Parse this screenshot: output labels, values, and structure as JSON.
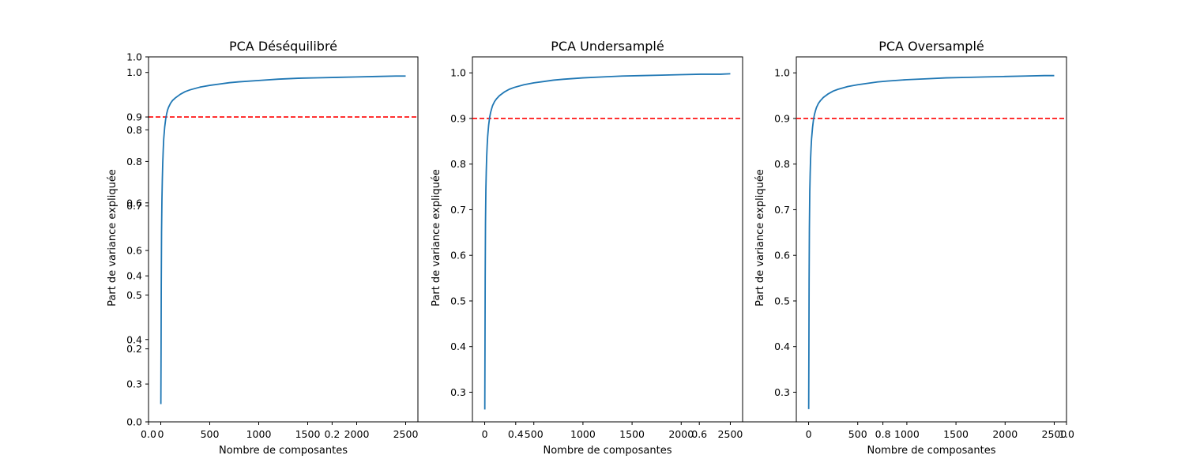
{
  "figure": {
    "background": "#ffffff",
    "line_color": "#1f77b4",
    "threshold_color": "#ff0000"
  },
  "overlay_axes": {
    "xticks": [
      "0.0",
      "0.2",
      "0.4",
      "0.6",
      "0.8",
      "1.0"
    ],
    "yticks": [
      "0.0",
      "0.2",
      "0.4",
      "0.6",
      "0.8",
      "1.0"
    ]
  },
  "chart_data": [
    {
      "type": "line",
      "title": "PCA Déséquilibré",
      "xlabel": "Nombre de composantes",
      "ylabel": "Part de variance expliquée",
      "xlim": [
        -125,
        2625
      ],
      "ylim": [
        0.215,
        1.035
      ],
      "xticks": [
        0,
        500,
        1000,
        1500,
        2000,
        2500
      ],
      "yticks": [
        0.3,
        0.4,
        0.5,
        0.6,
        0.7,
        0.8,
        0.9,
        1.0
      ],
      "threshold": 0.9,
      "series": [
        {
          "x": [
            1,
            3,
            5,
            8,
            12,
            16,
            20,
            25,
            30,
            40,
            50,
            60,
            70,
            80,
            100,
            120,
            150,
            200,
            250,
            300,
            400,
            500,
            600,
            700,
            800,
            1000,
            1200,
            1400,
            1600,
            1800,
            2000,
            2200,
            2400,
            2500
          ],
          "y": [
            0.255,
            0.37,
            0.52,
            0.64,
            0.715,
            0.76,
            0.795,
            0.825,
            0.85,
            0.877,
            0.895,
            0.907,
            0.916,
            0.922,
            0.931,
            0.937,
            0.943,
            0.951,
            0.957,
            0.961,
            0.967,
            0.971,
            0.974,
            0.977,
            0.979,
            0.982,
            0.985,
            0.987,
            0.988,
            0.989,
            0.99,
            0.991,
            0.992,
            0.992
          ]
        }
      ]
    },
    {
      "type": "line",
      "title": "PCA Undersamplé",
      "xlabel": "Nombre de composantes",
      "ylabel": "Part de variance expliquée",
      "xlim": [
        -125,
        2625
      ],
      "ylim": [
        0.235,
        1.035
      ],
      "xticks": [
        0,
        500,
        1000,
        1500,
        2000,
        2500
      ],
      "yticks": [
        0.3,
        0.4,
        0.5,
        0.6,
        0.7,
        0.8,
        0.9,
        1.0
      ],
      "threshold": 0.9,
      "series": [
        {
          "x": [
            1,
            3,
            5,
            8,
            12,
            16,
            20,
            25,
            30,
            40,
            50,
            60,
            70,
            80,
            100,
            120,
            150,
            200,
            250,
            300,
            400,
            500,
            600,
            700,
            800,
            1000,
            1200,
            1400,
            1600,
            1800,
            2000,
            2200,
            2400,
            2500
          ],
          "y": [
            0.262,
            0.4,
            0.55,
            0.67,
            0.745,
            0.785,
            0.815,
            0.84,
            0.86,
            0.885,
            0.902,
            0.913,
            0.921,
            0.928,
            0.937,
            0.943,
            0.95,
            0.958,
            0.964,
            0.968,
            0.974,
            0.978,
            0.981,
            0.984,
            0.986,
            0.989,
            0.991,
            0.993,
            0.994,
            0.995,
            0.996,
            0.997,
            0.997,
            0.998
          ]
        }
      ]
    },
    {
      "type": "line",
      "title": "PCA Oversamplé",
      "xlabel": "Nombre de composantes",
      "ylabel": "Part de variance expliquée",
      "xlim": [
        -125,
        2625
      ],
      "ylim": [
        0.235,
        1.035
      ],
      "xticks": [
        0,
        500,
        1000,
        1500,
        2000,
        2500
      ],
      "yticks": [
        0.3,
        0.4,
        0.5,
        0.6,
        0.7,
        0.8,
        0.9,
        1.0
      ],
      "threshold": 0.9,
      "series": [
        {
          "x": [
            1,
            3,
            5,
            8,
            12,
            16,
            20,
            25,
            30,
            40,
            50,
            60,
            70,
            80,
            100,
            120,
            150,
            200,
            250,
            300,
            400,
            500,
            600,
            700,
            800,
            1000,
            1200,
            1400,
            1600,
            1800,
            2000,
            2200,
            2400,
            2500
          ],
          "y": [
            0.263,
            0.39,
            0.54,
            0.66,
            0.74,
            0.78,
            0.81,
            0.835,
            0.855,
            0.88,
            0.898,
            0.909,
            0.917,
            0.924,
            0.933,
            0.939,
            0.946,
            0.954,
            0.96,
            0.964,
            0.97,
            0.974,
            0.977,
            0.98,
            0.982,
            0.985,
            0.987,
            0.989,
            0.99,
            0.991,
            0.992,
            0.993,
            0.994,
            0.994
          ]
        }
      ]
    }
  ]
}
